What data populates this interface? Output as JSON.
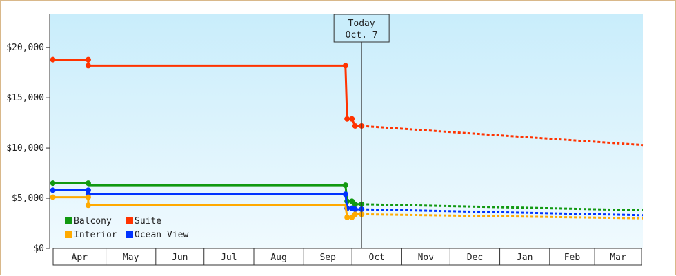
{
  "chart_data": {
    "type": "line",
    "title": "",
    "xlabel": "",
    "ylabel": "",
    "ylim": [
      0,
      23300
    ],
    "y_ticks": [
      {
        "value": 0,
        "label": "$0"
      },
      {
        "value": 5000,
        "label": "$5,000"
      },
      {
        "value": 10000,
        "label": "$10,000"
      },
      {
        "value": 15000,
        "label": "$15,000"
      },
      {
        "value": 20000,
        "label": "$20,000"
      }
    ],
    "x_unit": "days since Apr 1",
    "xlim": [
      -5,
      364
    ],
    "months": [
      {
        "label": "Apr",
        "start": -5,
        "end": 30
      },
      {
        "label": "May",
        "start": 30,
        "end": 61
      },
      {
        "label": "Jun",
        "start": 61,
        "end": 91
      },
      {
        "label": "Jul",
        "start": 91,
        "end": 122
      },
      {
        "label": "Aug",
        "start": 122,
        "end": 153
      },
      {
        "label": "Sep",
        "start": 153,
        "end": 183
      },
      {
        "label": "Oct",
        "start": 183,
        "end": 214
      },
      {
        "label": "Nov",
        "start": 214,
        "end": 244
      },
      {
        "label": "Dec",
        "start": 244,
        "end": 275
      },
      {
        "label": "Jan",
        "start": 275,
        "end": 306
      },
      {
        "label": "Feb",
        "start": 306,
        "end": 334
      },
      {
        "label": "Mar",
        "start": 334,
        "end": 364
      }
    ],
    "today": {
      "x": 189,
      "line1": "Today",
      "line2": "Oct. 7"
    },
    "grid": false,
    "legend_position": "bottom-left",
    "series": [
      {
        "name": "Suite",
        "color": "#ff3300",
        "history": [
          [
            -3,
            18800
          ],
          [
            19,
            18800
          ],
          [
            19,
            18200
          ],
          [
            179,
            18200
          ],
          [
            180,
            12900
          ],
          [
            183,
            12900
          ],
          [
            185,
            12200
          ],
          [
            189,
            12200
          ]
        ],
        "markers": [
          [
            -3,
            18800
          ],
          [
            19,
            18800
          ],
          [
            19,
            18200
          ],
          [
            179,
            18200
          ],
          [
            180,
            12900
          ],
          [
            183,
            12900
          ],
          [
            185,
            12200
          ],
          [
            189,
            12200
          ]
        ],
        "forecast": [
          [
            189,
            12200
          ],
          [
            364,
            10300
          ]
        ]
      },
      {
        "name": "Balcony",
        "color": "#119911",
        "history": [
          [
            -3,
            6500
          ],
          [
            19,
            6500
          ],
          [
            19,
            6300
          ],
          [
            179,
            6300
          ],
          [
            180,
            4700
          ],
          [
            183,
            4700
          ],
          [
            185,
            4400
          ],
          [
            189,
            4400
          ]
        ],
        "markers": [
          [
            -3,
            6500
          ],
          [
            19,
            6500
          ],
          [
            179,
            6300
          ],
          [
            180,
            4700
          ],
          [
            183,
            4700
          ],
          [
            185,
            4400
          ],
          [
            189,
            4400
          ]
        ],
        "forecast": [
          [
            189,
            4400
          ],
          [
            364,
            3800
          ]
        ]
      },
      {
        "name": "Ocean View",
        "color": "#0033ff",
        "history": [
          [
            -3,
            5800
          ],
          [
            19,
            5800
          ],
          [
            19,
            5400
          ],
          [
            179,
            5400
          ],
          [
            180,
            4000
          ],
          [
            183,
            4000
          ],
          [
            185,
            3900
          ],
          [
            189,
            3900
          ]
        ],
        "markers": [
          [
            -3,
            5800
          ],
          [
            19,
            5800
          ],
          [
            19,
            5400
          ],
          [
            179,
            5400
          ],
          [
            180,
            4000
          ],
          [
            183,
            4000
          ],
          [
            185,
            3900
          ],
          [
            189,
            3900
          ]
        ],
        "forecast": [
          [
            189,
            3900
          ],
          [
            364,
            3300
          ]
        ]
      },
      {
        "name": "Interior",
        "color": "#ffaa00",
        "history": [
          [
            -3,
            5100
          ],
          [
            19,
            5100
          ],
          [
            19,
            4300
          ],
          [
            179,
            4300
          ],
          [
            180,
            3100
          ],
          [
            183,
            3100
          ],
          [
            185,
            3400
          ],
          [
            189,
            3400
          ]
        ],
        "markers": [
          [
            -3,
            5100
          ],
          [
            19,
            5100
          ],
          [
            19,
            4300
          ],
          [
            180,
            3100
          ],
          [
            183,
            3100
          ],
          [
            185,
            3400
          ],
          [
            189,
            3400
          ]
        ],
        "forecast": [
          [
            189,
            3400
          ],
          [
            364,
            3000
          ]
        ]
      }
    ],
    "legend": [
      {
        "name": "Balcony",
        "color": "#119911"
      },
      {
        "name": "Suite",
        "color": "#ff3300"
      },
      {
        "name": "Interior",
        "color": "#ffaa00"
      },
      {
        "name": "Ocean View",
        "color": "#0033ff"
      }
    ]
  }
}
